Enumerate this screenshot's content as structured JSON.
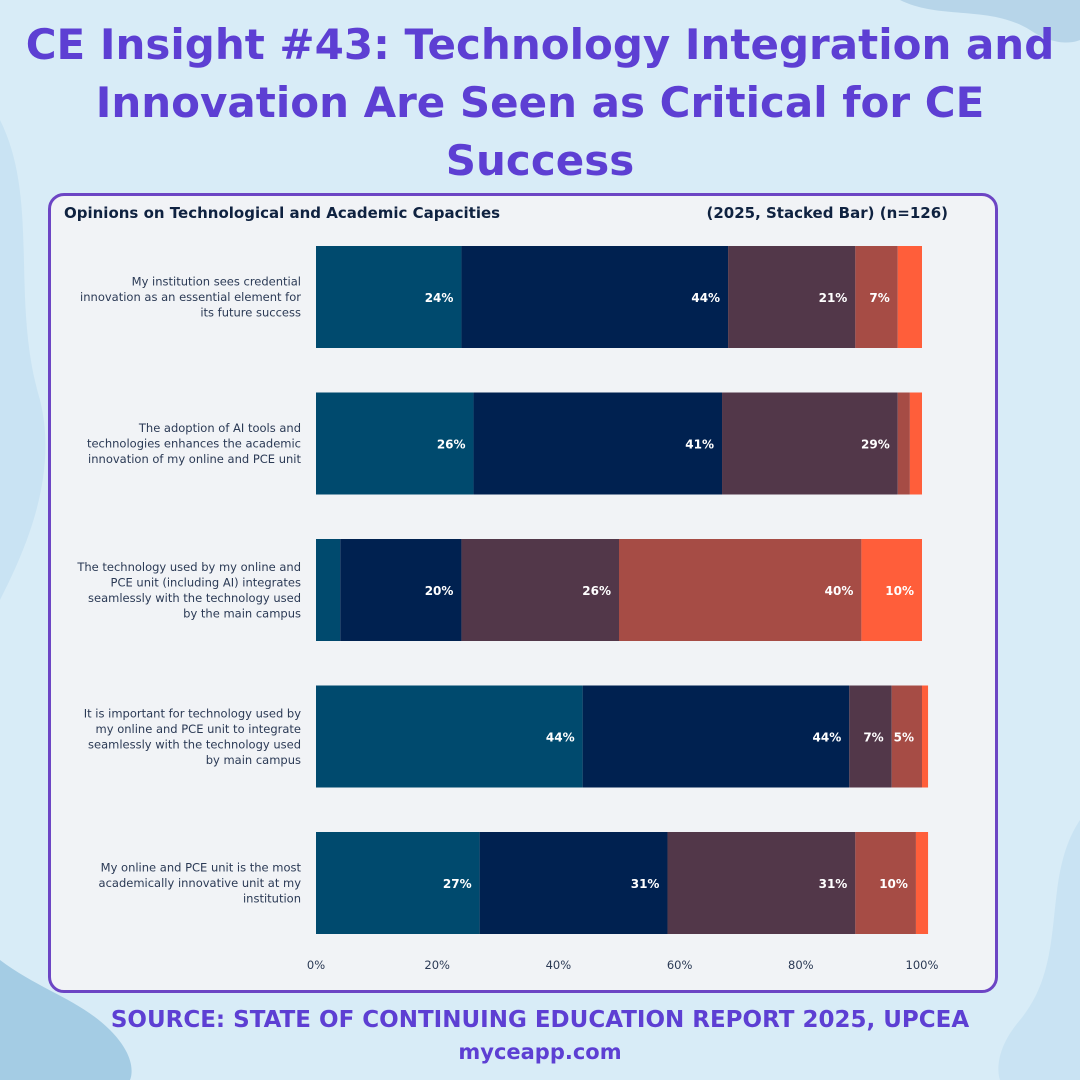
{
  "headline": "CE Insight #43: Technology Integration and Innovation Are Seen as Critical for CE Success",
  "source": "SOURCE: STATE OF CONTINUING EDUCATION REPORT 2025, UPCEA",
  "website": "myceapp.com",
  "colors": {
    "background": "#d8ecf7",
    "headline": "#5d3fd3",
    "panel_border": "#6c45c4",
    "panel_bg": "#f1f3f6"
  },
  "chart_data": {
    "type": "bar",
    "orientation": "horizontal",
    "stacked": true,
    "title": "Opinions on Technological and Academic Capacities",
    "subtitle": "(2025, Stacked Bar) (n=126)",
    "categories": [
      "My institution sees credential innovation as an essential element for its future success",
      "The adoption of AI tools and technologies enhances the academic innovation of my online and PCE unit",
      "The technology used by my online and PCE unit (including AI) integrates seamlessly with the technology used by the main campus",
      "It is important for technology used by my online and PCE unit to integrate seamlessly with the technology used by main campus",
      "My online and PCE unit is the most academically innovative unit at my institution"
    ],
    "category_lines": [
      [
        "My institution sees credential",
        "innovation as an essential element for",
        "its future success"
      ],
      [
        "The adoption of AI tools and",
        "technologies enhances the academic",
        "innovation of my online and PCE unit"
      ],
      [
        "The technology used by my online and",
        "PCE unit (including AI) integrates",
        "seamlessly with the technology used",
        "by the main campus"
      ],
      [
        "It is important for technology used by",
        "my online and PCE unit to integrate",
        "seamlessly with the technology used",
        "by main campus"
      ],
      [
        "My online and PCE unit is the most",
        "academically innovative unit at my",
        "institution"
      ]
    ],
    "series": [
      {
        "name": "Segment 1",
        "color": "#004a6e",
        "values": [
          24,
          26,
          4,
          44,
          27
        ],
        "labels": [
          "24%",
          "26%",
          "",
          "44%",
          "27%"
        ]
      },
      {
        "name": "Segment 2",
        "color": "#002150",
        "values": [
          44,
          41,
          20,
          44,
          31
        ],
        "labels": [
          "44%",
          "41%",
          "20%",
          "44%",
          "31%"
        ]
      },
      {
        "name": "Segment 3",
        "color": "#523749",
        "values": [
          21,
          29,
          26,
          7,
          31
        ],
        "labels": [
          "21%",
          "29%",
          "26%",
          "7%",
          "31%"
        ]
      },
      {
        "name": "Segment 4",
        "color": "#a64c45",
        "values": [
          7,
          2,
          40,
          5,
          10
        ],
        "labels": [
          "7%",
          "",
          "40%",
          "5%",
          "10%"
        ]
      },
      {
        "name": "Segment 5",
        "color": "#ff5e3a",
        "values": [
          4,
          2,
          10,
          1,
          2
        ],
        "labels": [
          "",
          "",
          "10%",
          "",
          ""
        ]
      }
    ],
    "xlim": [
      0,
      100
    ],
    "xticks": [
      "0%",
      "20%",
      "40%",
      "60%",
      "80%",
      "100%"
    ],
    "legend": "none"
  }
}
